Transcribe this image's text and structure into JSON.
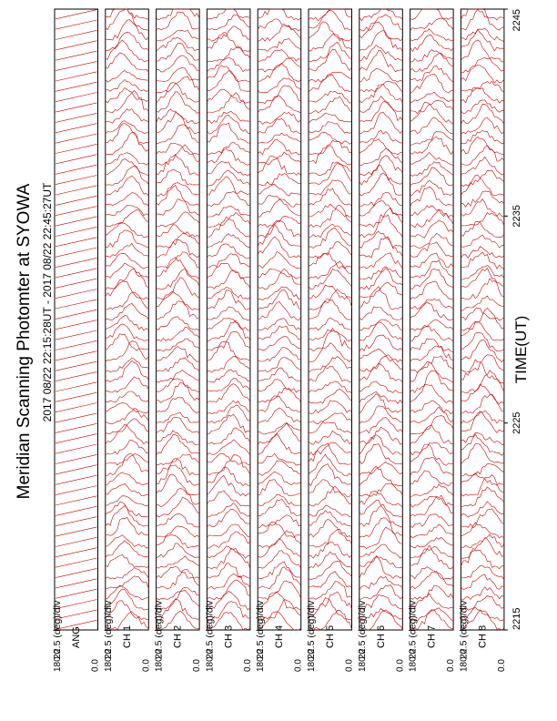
{
  "figure": {
    "title": "Meridian Scanning Photomter at SYOWA",
    "time_range": "2017 08/22 22:15:28UT - 2017 08/22 22:45:27UT",
    "time_label": "TIME(UT)",
    "scale_label": "22.5 (deg)/div"
  },
  "colors": {
    "trace": "#cc0000",
    "frame": "#000000",
    "background": "#ffffff"
  },
  "chart_data": {
    "type": "line",
    "title": "Meridian Scanning Photomter at SYOWA",
    "subtitle": "2017 08/22 22:15:28UT - 2017 08/22 22:45:27UT",
    "xlabel": "TIME(UT)",
    "x_ticks": [
      "2215",
      "2225",
      "2235",
      "2245"
    ],
    "x_range": [
      "2215",
      "2245"
    ],
    "y_ticks": [
      "180.0",
      "0.0"
    ],
    "y_range": [
      0.0,
      180.0
    ],
    "panel_scale": "22.5 (deg)/div",
    "orientation": "rotated 90 degrees counter-clockwise",
    "grid": false,
    "panels": [
      {
        "label": "ANG",
        "number": "",
        "kind": "angle"
      },
      {
        "label": "CH",
        "number": "1",
        "kind": "intensity"
      },
      {
        "label": "CH",
        "number": "2",
        "kind": "intensity"
      },
      {
        "label": "CH",
        "number": "3",
        "kind": "intensity"
      },
      {
        "label": "CH",
        "number": "4",
        "kind": "intensity"
      },
      {
        "label": "CH",
        "number": "5",
        "kind": "intensity"
      },
      {
        "label": "CH",
        "number": "6",
        "kind": "intensity"
      },
      {
        "label": "CH",
        "number": "7",
        "kind": "intensity"
      },
      {
        "label": "CH",
        "number": "8",
        "kind": "intensity"
      }
    ],
    "scans_per_panel": 60
  }
}
